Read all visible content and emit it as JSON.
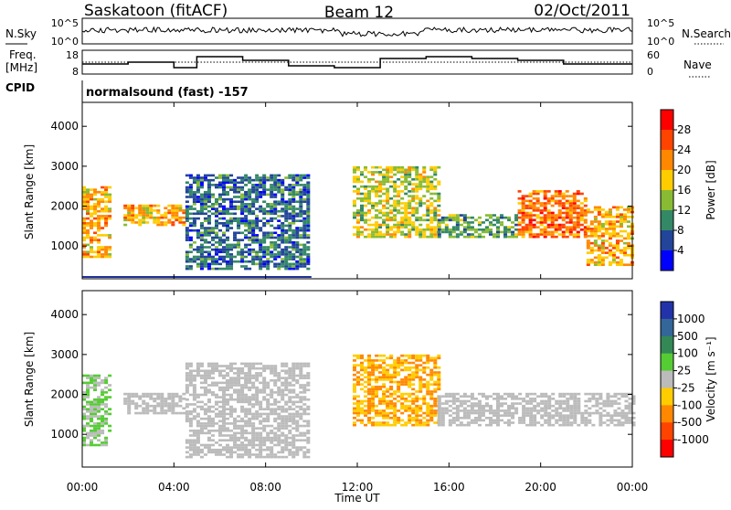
{
  "header": {
    "station": "Saskatoon (fitACF)",
    "beam": "Beam 12",
    "date": "02/Oct/2011"
  },
  "top_panel": {
    "left_label": "N.Sky",
    "right_label": "N.Search",
    "left_ticks": [
      "10^5",
      "10^0"
    ],
    "right_ticks": [
      "10^5",
      "10^0"
    ]
  },
  "freq_panel": {
    "left_label_1": "Freq.",
    "left_label_2": "[MHz]",
    "right_label": "Nave",
    "left_ticks": [
      "18",
      "8"
    ],
    "right_ticks": [
      "60",
      "0"
    ]
  },
  "cpid": {
    "label": "CPID",
    "value": "normalsound (fast) -157"
  },
  "colorbars": {
    "power": {
      "label": "Power [dB]",
      "ticks": [
        "28",
        "24",
        "20",
        "16",
        "12",
        "8",
        "4"
      ],
      "colors": [
        "#ff0000",
        "#ff4400",
        "#ff8800",
        "#ffcc00",
        "#88bb33",
        "#338866",
        "#224499",
        "#0000ff"
      ]
    },
    "velocity": {
      "label": "Velocity [m s⁻¹]",
      "ticks": [
        "1000",
        "500",
        "100",
        "25",
        "-25",
        "-100",
        "-500",
        "-1000"
      ],
      "colors": [
        "#2233aa",
        "#336699",
        "#338855",
        "#55cc33",
        "#bbbbbb",
        "#ffcc00",
        "#ff8800",
        "#ff4400",
        "#ff0000"
      ]
    }
  },
  "chart_data": [
    {
      "type": "heatmap",
      "panel": "power",
      "xlabel": "Time UT",
      "ylabel": "Slant Range [km]",
      "xlim": [
        0,
        24
      ],
      "ylim": [
        180,
        4600
      ],
      "x_ticks": [
        "00:00",
        "04:00",
        "08:00",
        "12:00",
        "16:00",
        "20:00",
        "00:00"
      ],
      "y_ticks": [
        1000,
        2000,
        3000,
        4000
      ],
      "scale_label": "Power [dB]",
      "scale_ticks": [
        28,
        24,
        20,
        16,
        12,
        8,
        4
      ],
      "echo_regions": [
        {
          "t0": 0.0,
          "t1": 1.2,
          "r0": 700,
          "r1": 2500,
          "level": 20
        },
        {
          "t0": 1.8,
          "t1": 4.5,
          "r0": 1500,
          "r1": 2000,
          "level": 20
        },
        {
          "t0": 4.5,
          "t1": 9.8,
          "r0": 400,
          "r1": 2800,
          "level": 8
        },
        {
          "t0": 11.8,
          "t1": 15.5,
          "r0": 1200,
          "r1": 3000,
          "level": 16
        },
        {
          "t0": 15.5,
          "t1": 19.0,
          "r0": 1200,
          "r1": 1800,
          "level": 12
        },
        {
          "t0": 19.0,
          "t1": 22.0,
          "r0": 1200,
          "r1": 2400,
          "level": 24
        },
        {
          "t0": 22.0,
          "t1": 24.0,
          "r0": 500,
          "r1": 2000,
          "level": 20
        }
      ]
    },
    {
      "type": "heatmap",
      "panel": "velocity",
      "xlabel": "Time UT",
      "ylabel": "Slant Range [km]",
      "xlim": [
        0,
        24
      ],
      "ylim": [
        180,
        4600
      ],
      "x_ticks": [
        "00:00",
        "04:00",
        "08:00",
        "12:00",
        "16:00",
        "20:00",
        "00:00"
      ],
      "y_ticks": [
        1000,
        2000,
        3000,
        4000
      ],
      "scale_label": "Velocity [m s⁻¹]",
      "scale_ticks": [
        1000,
        500,
        100,
        25,
        -25,
        -100,
        -500,
        -1000
      ],
      "echo_regions": [
        {
          "t0": 0.0,
          "t1": 1.2,
          "r0": 700,
          "r1": 2500,
          "level": 25
        },
        {
          "t0": 1.8,
          "t1": 4.5,
          "r0": 1500,
          "r1": 2000,
          "level": 0
        },
        {
          "t0": 4.5,
          "t1": 9.8,
          "r0": 400,
          "r1": 2800,
          "level": 0
        },
        {
          "t0": 11.8,
          "t1": 15.5,
          "r0": 1200,
          "r1": 3000,
          "level": -100
        },
        {
          "t0": 15.5,
          "t1": 24.0,
          "r0": 1200,
          "r1": 2000,
          "level": 0
        }
      ]
    }
  ],
  "x_axis": {
    "label": "Time UT",
    "ticks": [
      "00:00",
      "04:00",
      "08:00",
      "12:00",
      "16:00",
      "20:00",
      "00:00"
    ]
  },
  "y_axis": {
    "label": "Slant Range [km]",
    "ticks": [
      "1000",
      "2000",
      "3000",
      "4000"
    ]
  }
}
